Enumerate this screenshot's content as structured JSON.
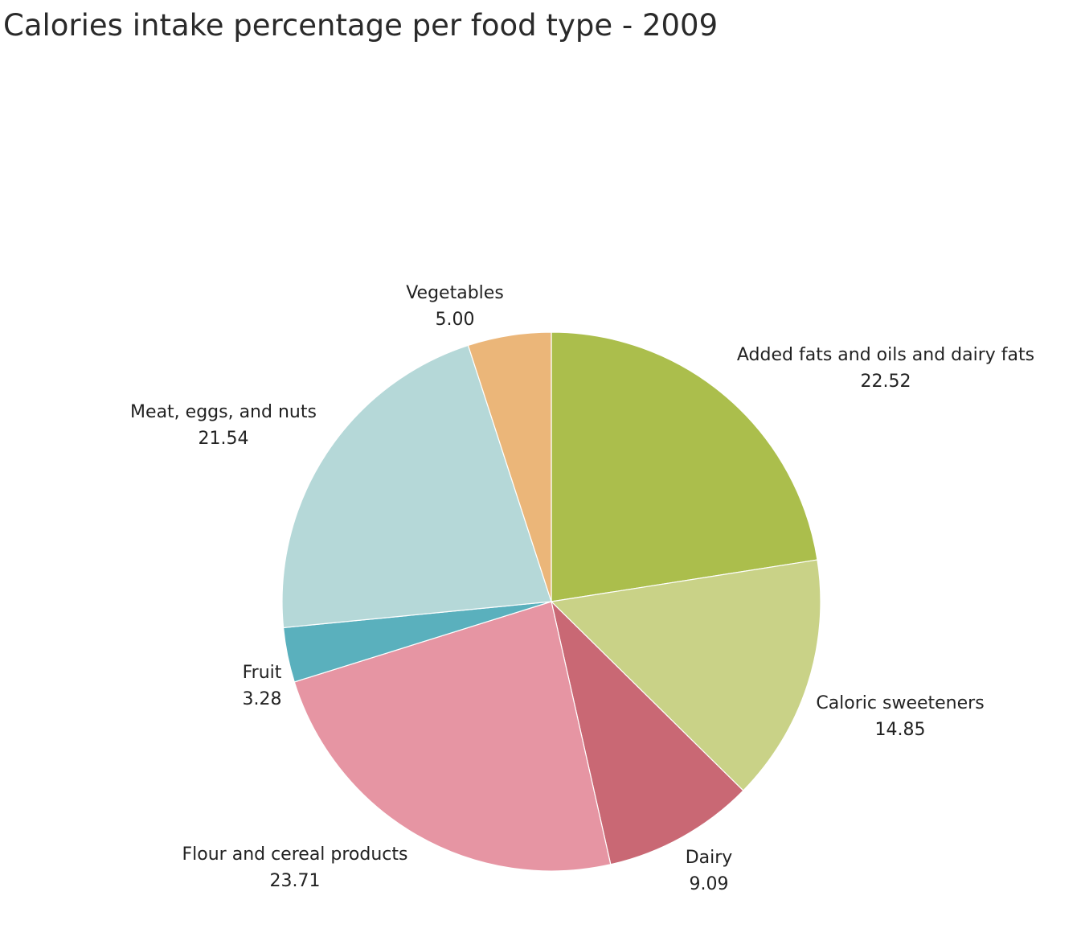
{
  "chart_data": {
    "type": "pie",
    "title": "Calories intake percentage per food type - 2009",
    "start_angle_deg": 0,
    "direction": "clockwise",
    "slices": [
      {
        "name": "Added fats and oils and dairy fats",
        "value": 22.52,
        "value_label": "22.52",
        "color": "#abbe4c"
      },
      {
        "name": "Caloric sweeteners",
        "value": 14.85,
        "value_label": "14.85",
        "color": "#c9d287"
      },
      {
        "name": "Dairy",
        "value": 9.09,
        "value_label": "9.09",
        "color": "#c96874"
      },
      {
        "name": "Flour and cereal products",
        "value": 23.71,
        "value_label": "23.71",
        "color": "#e695a3"
      },
      {
        "name": "Fruit",
        "value": 3.28,
        "value_label": "3.28",
        "color": "#5ab0bd"
      },
      {
        "name": "Meat, eggs, and nuts",
        "value": 21.54,
        "value_label": "21.54",
        "color": "#b5d8d8"
      },
      {
        "name": "Vegetables",
        "value": 5.0,
        "value_label": "5.00",
        "color": "#ebb679"
      }
    ]
  }
}
